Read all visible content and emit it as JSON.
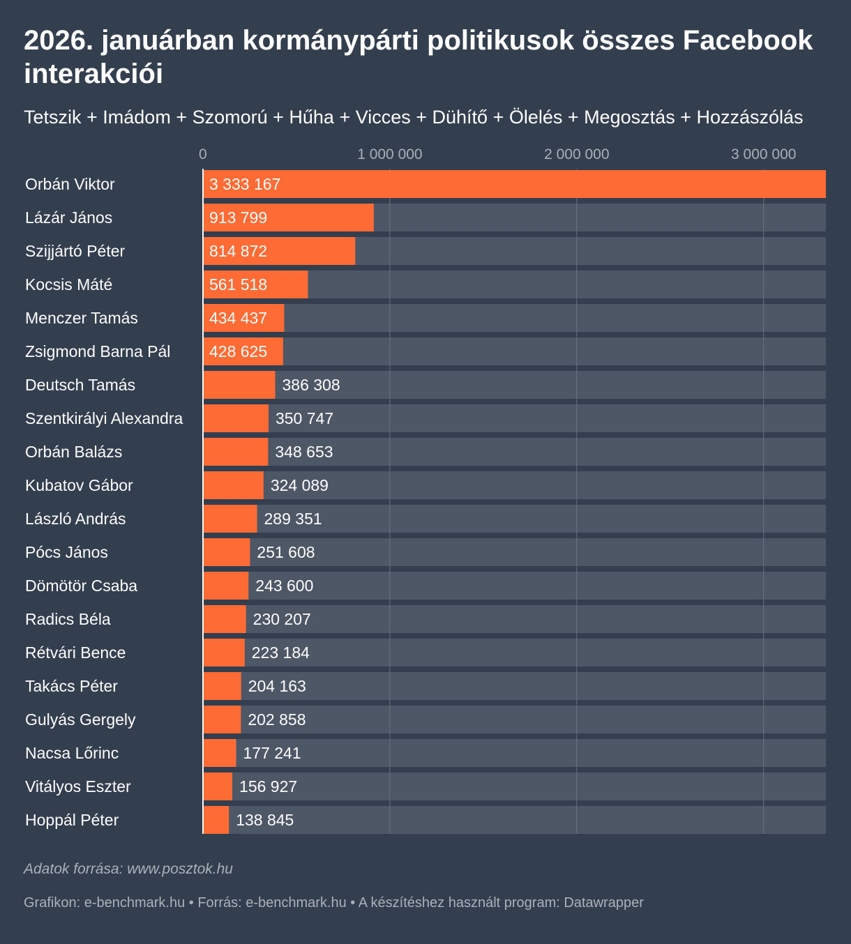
{
  "header": {
    "title": "2026. januárban kormánypárti politikusok összes Facebook interakciói",
    "subtitle": "Tetszik + Imádom + Szomorú + Hűha + Vicces + Dühítő + Ölelés + Megosztás + Hozzászólás"
  },
  "chart_data": {
    "type": "bar",
    "orientation": "horizontal",
    "title": "2026. januárban kormánypárti politikusok összes Facebook interakciói",
    "subtitle": "Tetszik + Imádom + Szomorú + Hűha + Vicces + Dühítő + Ölelés + Megosztás + Hozzászólás",
    "xlim": [
      0,
      3333167
    ],
    "ticks": [
      {
        "value": 0,
        "label": "0"
      },
      {
        "value": 1000000,
        "label": "1 000 000"
      },
      {
        "value": 2000000,
        "label": "2 000 000"
      },
      {
        "value": 3000000,
        "label": "3 000 000"
      }
    ],
    "categories": [
      "Orbán Viktor",
      "Lázár János",
      "Szijjártó Péter",
      "Kocsis Máté",
      "Menczer Tamás",
      "Zsigmond Barna Pál",
      "Deutsch Tamás",
      "Szentkirályi Alexandra",
      "Orbán Balázs",
      "Kubatov Gábor",
      "László András",
      "Pócs János",
      "Dömötör Csaba",
      "Radics Béla",
      "Rétvári Bence",
      "Takács Péter",
      "Gulyás Gergely",
      "Nacsa Lőrinc",
      "Vitályos Eszter",
      "Hoppál Péter"
    ],
    "values": [
      3333167,
      913799,
      814872,
      561518,
      434437,
      428625,
      386308,
      350747,
      348653,
      324089,
      289351,
      251608,
      243600,
      230207,
      223184,
      204163,
      202858,
      177241,
      156927,
      138845
    ],
    "value_labels": [
      "3 333 167",
      "913 799",
      "814 872",
      "561 518",
      "434 437",
      "428 625",
      "386 308",
      "350 747",
      "348 653",
      "324 089",
      "289 351",
      "251 608",
      "243 600",
      "230 207",
      "223 184",
      "204 163",
      "202 858",
      "177 241",
      "156 927",
      "138 845"
    ],
    "colors": {
      "bar": "#ff6b35",
      "track": "#4d5766",
      "background": "#333e4e",
      "grid": "#6a7482",
      "tick_text": "#a9b0ba",
      "text": "#ffffff"
    }
  },
  "footer": {
    "source_note": "Adatok forrása: www.posztok.hu",
    "credits": "Grafikon: e-benchmark.hu • Forrás: e-benchmark.hu • A készítéshez használt program: Datawrapper"
  }
}
